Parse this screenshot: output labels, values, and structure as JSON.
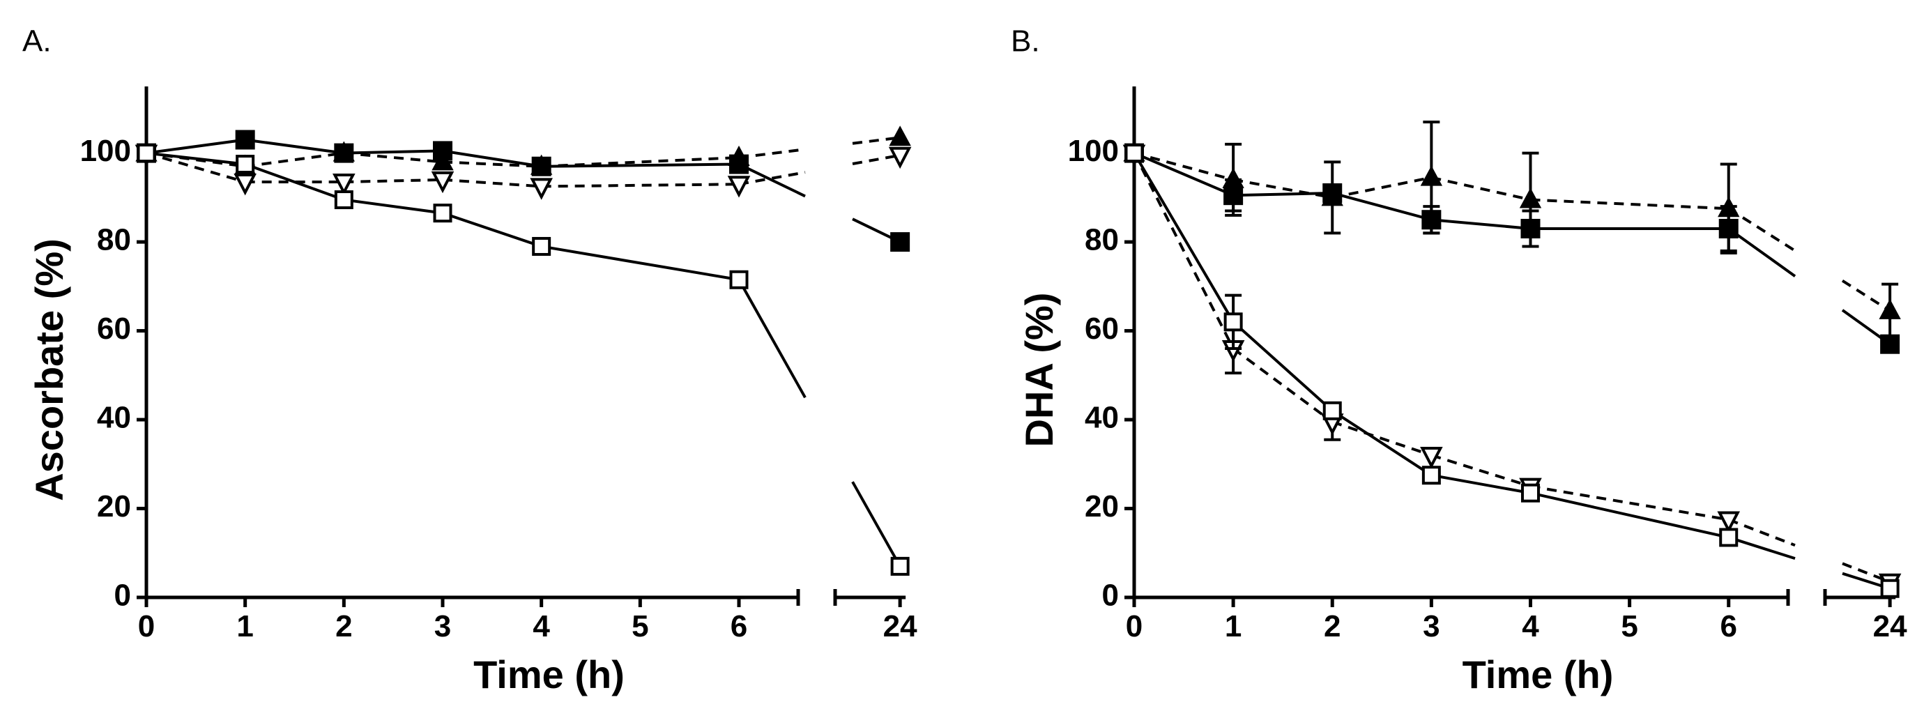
{
  "chart_data": [
    {
      "type": "line",
      "panel": "A.",
      "xlabel": "Time (h)",
      "ylabel": "Ascorbate (%)",
      "ylim": [
        0,
        115
      ],
      "yticks": [
        0,
        20,
        40,
        60,
        80,
        100
      ],
      "xticks_main": [
        0,
        1,
        2,
        3,
        4,
        5,
        6
      ],
      "xticks_break": [
        24
      ],
      "x_break": {
        "main_range": [
          0,
          6.6
        ],
        "break_range": [
          22.9,
          24.4
        ]
      },
      "series": [
        {
          "name": "filled-square",
          "marker": "square-filled",
          "dash": false,
          "x": [
            0,
            1,
            2,
            3,
            4,
            6,
            24
          ],
          "y": [
            100,
            103,
            100,
            100.5,
            97,
            97.5,
            80
          ],
          "err": [
            0,
            0,
            0,
            0,
            0,
            0,
            0
          ]
        },
        {
          "name": "filled-triangle",
          "marker": "triangle-filled",
          "dash": true,
          "x": [
            0,
            1,
            2,
            3,
            4,
            6,
            24
          ],
          "y": [
            100,
            97,
            100,
            98,
            97,
            99,
            103.5
          ],
          "err": [
            0,
            0,
            0,
            0,
            0,
            0,
            0
          ]
        },
        {
          "name": "open-triangle-down",
          "marker": "triangle-down-open",
          "dash": true,
          "x": [
            0,
            1,
            2,
            3,
            4,
            6,
            24
          ],
          "y": [
            100,
            93.5,
            93.5,
            94,
            92.5,
            93,
            99.5
          ],
          "err": [
            0,
            0,
            0,
            0,
            0,
            0,
            0
          ]
        },
        {
          "name": "open-square",
          "marker": "square-open",
          "dash": false,
          "x": [
            0,
            1,
            2,
            3,
            4,
            6,
            24
          ],
          "y": [
            100,
            97.5,
            89.5,
            86.5,
            79,
            71.5,
            7
          ],
          "err": [
            0,
            0,
            0,
            0,
            0,
            0,
            0
          ]
        }
      ]
    },
    {
      "type": "line",
      "panel": "B.",
      "xlabel": "Time (h)",
      "ylabel": "DHA (%)",
      "ylim": [
        0,
        115
      ],
      "yticks": [
        0,
        20,
        40,
        60,
        80,
        100
      ],
      "xticks_main": [
        0,
        1,
        2,
        3,
        4,
        5,
        6
      ],
      "xticks_break": [
        24
      ],
      "x_break": {
        "main_range": [
          0,
          6.6
        ],
        "break_range": [
          22.9,
          24.4
        ]
      },
      "series": [
        {
          "name": "filled-square",
          "marker": "square-filled",
          "dash": false,
          "x": [
            0,
            1,
            2,
            3,
            4,
            6,
            24
          ],
          "y": [
            100,
            90.5,
            91,
            85,
            83,
            83,
            57
          ],
          "err": [
            0,
            3.5,
            0,
            3,
            4,
            5,
            0
          ]
        },
        {
          "name": "filled-triangle",
          "marker": "triangle-filled",
          "dash": true,
          "x": [
            0,
            1,
            2,
            3,
            4,
            6,
            24
          ],
          "y": [
            100,
            94,
            90,
            94.5,
            89.5,
            87.5,
            64.5
          ],
          "err": [
            0,
            8,
            8,
            12.5,
            10.5,
            10,
            6
          ]
        },
        {
          "name": "open-triangle-down",
          "marker": "triangle-down-open",
          "dash": true,
          "x": [
            0,
            1,
            2,
            3,
            4,
            6,
            24
          ],
          "y": [
            100,
            56,
            39.5,
            32,
            25,
            17.5,
            3.5
          ],
          "err": [
            0,
            5.5,
            4,
            0,
            0,
            0,
            0
          ]
        },
        {
          "name": "open-square",
          "marker": "square-open",
          "dash": false,
          "x": [
            0,
            1,
            2,
            3,
            4,
            6,
            24
          ],
          "y": [
            100,
            62,
            42,
            27.5,
            23.5,
            13.5,
            2
          ],
          "err": [
            0,
            6,
            0,
            0,
            0,
            0,
            0
          ]
        }
      ]
    }
  ]
}
